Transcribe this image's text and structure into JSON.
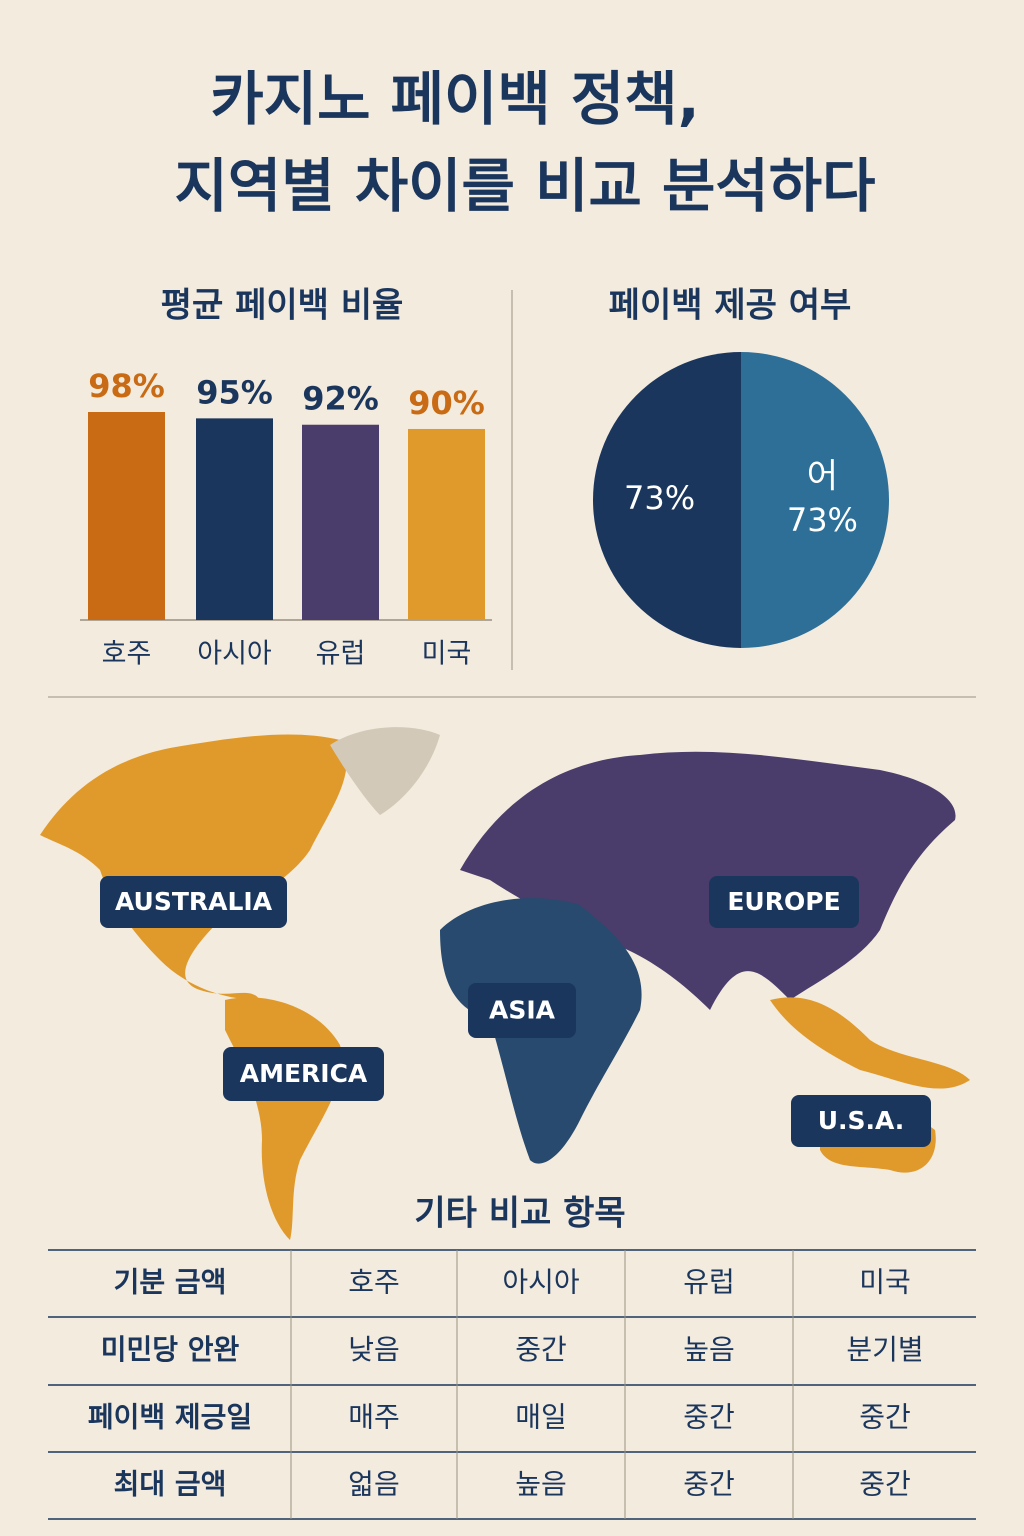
{
  "title_lines": [
    "카지노 페이백 정책,",
    "지역별 차이를 비교 분석하다"
  ],
  "chart_data": [
    {
      "type": "bar",
      "title": "평균 페이백 비율",
      "categories": [
        "호주",
        "아시아",
        "유럽",
        "미국"
      ],
      "values": [
        98,
        95,
        92,
        90
      ],
      "value_labels": [
        "98%",
        "95%",
        "92%",
        "90%"
      ],
      "colors": [
        "#c96a14",
        "#1b365d",
        "#4a3d6b",
        "#e09a2c"
      ],
      "label_colors": [
        "#c96a14",
        "#1b365d",
        "#1b365d",
        "#c96a14"
      ]
    },
    {
      "type": "pie",
      "title": "페이백 제공 여부",
      "categories": [
        null,
        "어"
      ],
      "values": [
        73,
        73
      ],
      "value_labels": [
        "73%",
        "73%"
      ],
      "colors": [
        "#1b365d",
        "#2e6f98"
      ]
    }
  ],
  "map": {
    "labels": [
      "AUSTRALIA",
      "EUROPE",
      "ASIA",
      "AMERICA",
      "U.S.A."
    ]
  },
  "table": {
    "title": "기타 비교 항목",
    "rows": [
      [
        "기분 금액",
        "호주",
        "아시아",
        "유럽",
        "미국"
      ],
      [
        "미민당 안완",
        "낮음",
        "중간",
        "높음",
        "분기별"
      ],
      [
        "페이백 제긍일",
        "매주",
        "매일",
        "중간",
        "중간"
      ],
      [
        "최대 금액",
        "얿음",
        "높음",
        "중간",
        "중간"
      ]
    ]
  }
}
